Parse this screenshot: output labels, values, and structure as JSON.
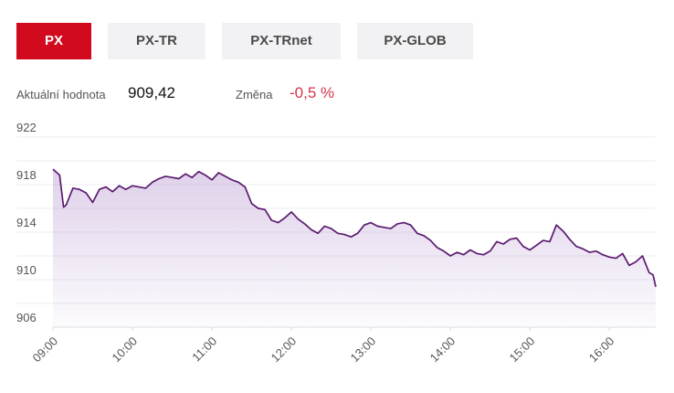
{
  "tabs": [
    {
      "label": "PX",
      "active": true
    },
    {
      "label": "PX-TR",
      "active": false
    },
    {
      "label": "PX-TRnet",
      "active": false
    },
    {
      "label": "PX-GLOB",
      "active": false
    }
  ],
  "stats": {
    "current_label": "Aktuální hodnota",
    "current_value": "909,42",
    "change_label": "Změna",
    "change_value": "-0,5 %"
  },
  "colors": {
    "accent": "#d10a1e",
    "line": "#5a1a6e",
    "fill": "#a27ac2",
    "change_negative": "#d6334a",
    "tab_inactive": "#f2f2f4"
  },
  "chart_data": {
    "type": "area",
    "title": "",
    "xlabel": "",
    "ylabel": "",
    "x_ticks": [
      "09:00",
      "10:00",
      "11:00",
      "12:00",
      "13:00",
      "14:00",
      "15:00",
      "16:00"
    ],
    "y_ticks": [
      "922",
      "918",
      "914",
      "910",
      "906"
    ],
    "ylim": [
      906,
      922
    ],
    "xlim": [
      "09:00",
      "16:35"
    ],
    "grid": true,
    "legend": "none",
    "series": [
      {
        "x": [
          "09:00",
          "09:05",
          "09:08",
          "09:10",
          "09:15",
          "09:20",
          "09:25",
          "09:30",
          "09:35",
          "09:40",
          "09:45",
          "09:50",
          "09:55",
          "10:00",
          "10:05",
          "10:10",
          "10:15",
          "10:20",
          "10:25",
          "10:30",
          "10:35",
          "10:40",
          "10:45",
          "10:50",
          "10:55",
          "11:00",
          "11:05",
          "11:10",
          "11:15",
          "11:20",
          "11:25",
          "11:30",
          "11:35",
          "11:40",
          "11:45",
          "11:50",
          "11:55",
          "12:00",
          "12:05",
          "12:10",
          "12:15",
          "12:20",
          "12:25",
          "12:30",
          "12:35",
          "12:40",
          "12:45",
          "12:50",
          "12:55",
          "13:00",
          "13:05",
          "13:10",
          "13:15",
          "13:20",
          "13:25",
          "13:30",
          "13:35",
          "13:40",
          "13:45",
          "13:50",
          "13:55",
          "14:00",
          "14:05",
          "14:10",
          "14:15",
          "14:20",
          "14:25",
          "14:30",
          "14:35",
          "14:40",
          "14:45",
          "14:50",
          "14:55",
          "15:00",
          "15:05",
          "15:10",
          "15:15",
          "15:20",
          "15:25",
          "15:30",
          "15:35",
          "15:40",
          "15:45",
          "15:50",
          "15:55",
          "16:00",
          "16:05",
          "16:10",
          "16:15",
          "16:20",
          "16:25",
          "16:30",
          "16:33",
          "16:35"
        ],
        "values": [
          919.3,
          918.8,
          916.1,
          916.3,
          917.7,
          917.6,
          917.3,
          916.5,
          917.6,
          917.8,
          917.4,
          917.9,
          917.6,
          917.9,
          917.8,
          917.7,
          918.2,
          918.5,
          918.7,
          918.6,
          918.5,
          918.9,
          918.6,
          919.1,
          918.8,
          918.4,
          919.0,
          918.7,
          918.4,
          918.2,
          917.8,
          916.4,
          916.0,
          915.9,
          915.0,
          914.8,
          915.2,
          915.7,
          915.1,
          914.7,
          914.2,
          913.9,
          914.5,
          914.3,
          913.9,
          913.8,
          913.6,
          913.9,
          914.6,
          914.8,
          914.5,
          914.4,
          914.3,
          914.7,
          914.8,
          914.6,
          913.9,
          913.7,
          913.3,
          912.7,
          912.4,
          912.0,
          912.3,
          912.1,
          912.5,
          912.2,
          912.1,
          912.4,
          913.2,
          913.0,
          913.4,
          913.5,
          912.8,
          912.5,
          912.9,
          913.3,
          913.2,
          914.6,
          914.1,
          913.4,
          912.8,
          912.6,
          912.3,
          912.4,
          912.1,
          911.9,
          911.8,
          912.2,
          911.2,
          911.5,
          912.0,
          910.6,
          910.4,
          909.4
        ]
      }
    ]
  }
}
